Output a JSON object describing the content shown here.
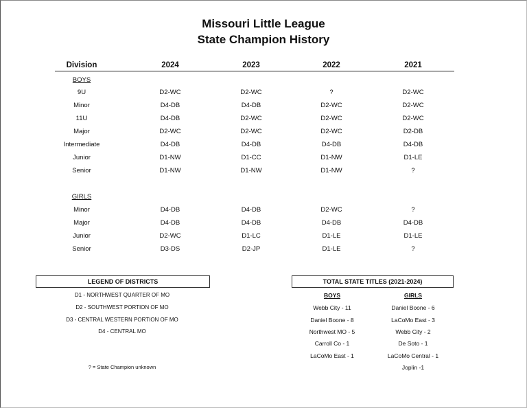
{
  "title_line1": "Missouri Little League",
  "title_line2": "State Champion History",
  "headers": [
    "Division",
    "2024",
    "2023",
    "2022",
    "2021"
  ],
  "boys_label": "BOYS",
  "girls_label": "GIRLS",
  "boys_rows": [
    [
      "9U",
      "D2-WC",
      "D2-WC",
      "?",
      "D2-WC"
    ],
    [
      "Minor",
      "D4-DB",
      "D4-DB",
      "D2-WC",
      "D2-WC"
    ],
    [
      "11U",
      "D4-DB",
      "D2-WC",
      "D2-WC",
      "D2-WC"
    ],
    [
      "Major",
      "D2-WC",
      "D2-WC",
      "D2-WC",
      "D2-DB"
    ],
    [
      "Intermediate",
      "D4-DB",
      "D4-DB",
      "D4-DB",
      "D4-DB"
    ],
    [
      "Junior",
      "D1-NW",
      "D1-CC",
      "D1-NW",
      "D1-LE"
    ],
    [
      "Senior",
      "D1-NW",
      "D1-NW",
      "D1-NW",
      "?"
    ]
  ],
  "girls_rows": [
    [
      "Minor",
      "D4-DB",
      "D4-DB",
      "D2-WC",
      "?"
    ],
    [
      "Major",
      "D4-DB",
      "D4-DB",
      "D4-DB",
      "D4-DB"
    ],
    [
      "Junior",
      "D2-WC",
      "D1-LC",
      "D1-LE",
      "D1-LE"
    ],
    [
      "Senior",
      "D3-DS",
      "D2-JP",
      "D1-LE",
      "?"
    ]
  ],
  "legend": {
    "title": "LEGEND OF DISTRICTS",
    "items": [
      "D1 - NORTHWEST QUARTER OF MO",
      "D2 - SOUTHWEST PORTION OF MO",
      "D3 - CENTRAL WESTERN PORTION OF MO",
      "D4 - CENTRAL MO"
    ],
    "note": "? = State Champion unknown"
  },
  "totals": {
    "title": "TOTAL STATE TITLES (2021-2024)",
    "boys_header": "BOYS",
    "girls_header": "GIRLS",
    "boys": [
      "Webb City - 11",
      "Daniel Boone - 8",
      "Northwest MO - 5",
      "Carroll Co - 1",
      "LaCoMo East - 1"
    ],
    "girls": [
      "Daniel Boone - 6",
      "LaCoMo East - 3",
      "Webb City - 2",
      "De Soto - 1",
      "LaCoMo Central - 1",
      "Joplin -1"
    ]
  }
}
